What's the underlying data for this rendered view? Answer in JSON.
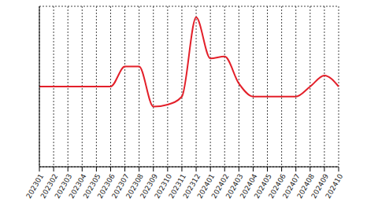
{
  "chart_data": {
    "type": "line",
    "categories": [
      "202301",
      "202302",
      "202303",
      "202304",
      "202305",
      "202306",
      "202307",
      "202308",
      "202309",
      "202310",
      "202311",
      "202312",
      "202401",
      "202402",
      "202403",
      "202404",
      "202405",
      "202406",
      "202407",
      "202408",
      "202409",
      "202410"
    ],
    "values": [
      4,
      4,
      4,
      4,
      4,
      4,
      5.0,
      5.0,
      3.0,
      3.1,
      3.5,
      7.45,
      5.4,
      5.5,
      4.15,
      3.5,
      3.5,
      3.5,
      3.5,
      4,
      4.55,
      4
    ],
    "color": "#e3202a",
    "ylim": [
      0,
      8
    ],
    "yticks": [
      0,
      1,
      2,
      3,
      4,
      5,
      6,
      7,
      8
    ],
    "grid": true,
    "tick_labels": "x"
  }
}
